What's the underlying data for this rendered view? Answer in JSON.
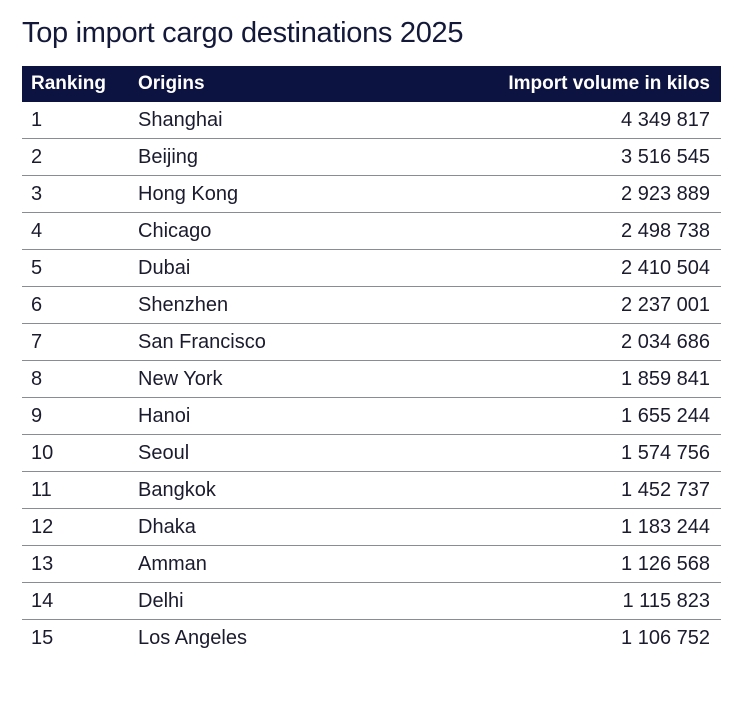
{
  "title": "Top import cargo destinations 2025",
  "table": {
    "columns": [
      "Ranking",
      "Origins",
      "Import volume in kilos"
    ],
    "rows": [
      {
        "rank": "1",
        "origin": "Shanghai",
        "volume": "4 349 817"
      },
      {
        "rank": "2",
        "origin": "Beijing",
        "volume": "3 516 545"
      },
      {
        "rank": "3",
        "origin": "Hong Kong",
        "volume": "2 923 889"
      },
      {
        "rank": "4",
        "origin": "Chicago",
        "volume": "2 498 738"
      },
      {
        "rank": "5",
        "origin": "Dubai",
        "volume": "2 410 504"
      },
      {
        "rank": "6",
        "origin": "Shenzhen",
        "volume": "2 237 001"
      },
      {
        "rank": "7",
        "origin": "San Francisco",
        "volume": "2 034 686"
      },
      {
        "rank": "8",
        "origin": "New York",
        "volume": "1 859 841"
      },
      {
        "rank": "9",
        "origin": "Hanoi",
        "volume": "1 655 244"
      },
      {
        "rank": "10",
        "origin": "Seoul",
        "volume": "1 574 756"
      },
      {
        "rank": "11",
        "origin": "Bangkok",
        "volume": "1 452 737"
      },
      {
        "rank": "12",
        "origin": "Dhaka",
        "volume": "1 183 244"
      },
      {
        "rank": "13",
        "origin": "Amman",
        "volume": "1 126 568"
      },
      {
        "rank": "14",
        "origin": "Delhi",
        "volume": "1 115 823"
      },
      {
        "rank": "15",
        "origin": "Los Angeles",
        "volume": "1 106 752"
      }
    ]
  },
  "colors": {
    "header_bg": "#0d1340",
    "header_text": "#ffffff",
    "title_text": "#14193a",
    "row_divider": "#8a8c93"
  }
}
